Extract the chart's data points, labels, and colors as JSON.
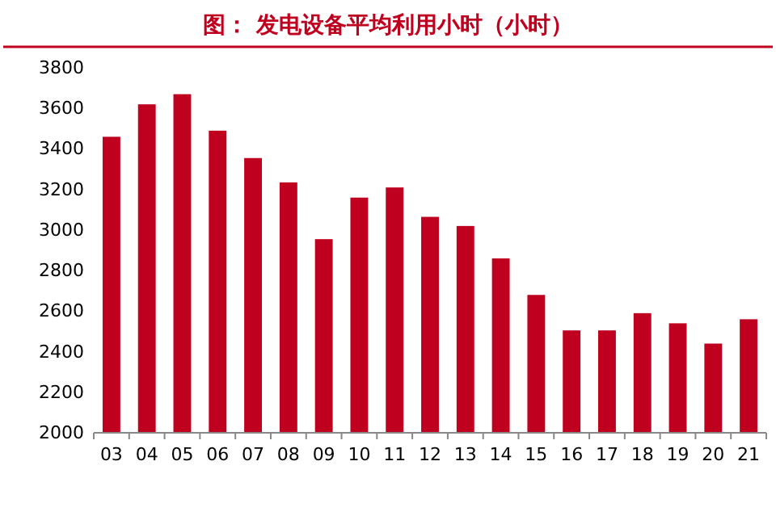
{
  "chart_data": {
    "type": "bar",
    "title": "图：  发电设备平均利用小时（小时）",
    "categories": [
      "03",
      "04",
      "05",
      "06",
      "07",
      "08",
      "09",
      "10",
      "11",
      "12",
      "13",
      "14",
      "15",
      "16",
      "17",
      "18",
      "19",
      "20",
      "21"
    ],
    "values": [
      3460,
      3620,
      3670,
      3490,
      3355,
      3235,
      2955,
      3160,
      3210,
      3065,
      3020,
      2860,
      2680,
      2505,
      2505,
      2590,
      2540,
      2440,
      2560
    ],
    "color": "#c0001f",
    "ylim": [
      2000,
      3800
    ],
    "yticks": [
      2000,
      2200,
      2400,
      2600,
      2800,
      3000,
      3200,
      3400,
      3600,
      3800
    ]
  }
}
